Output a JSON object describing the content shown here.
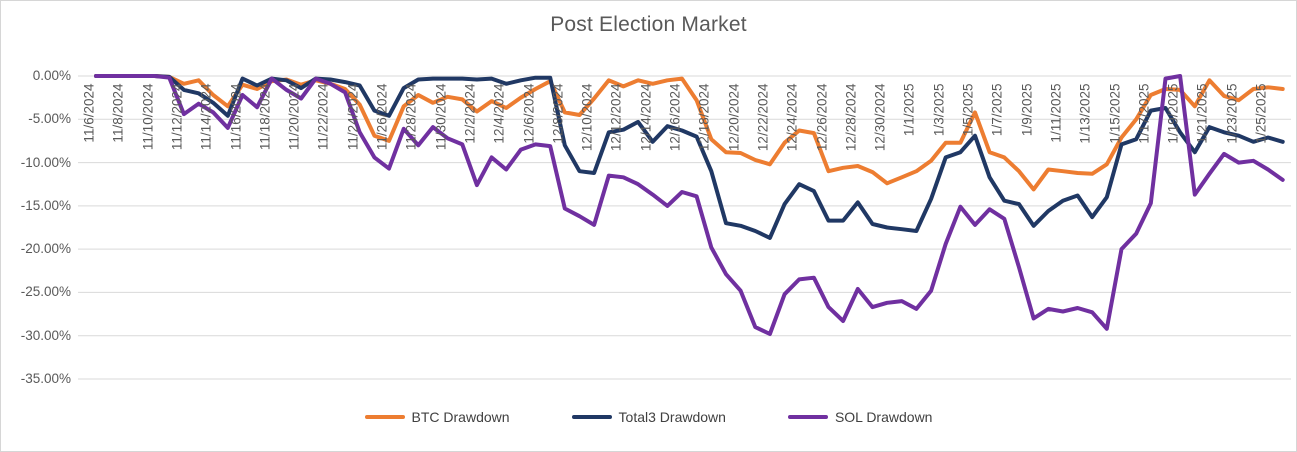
{
  "chart_title": "Post Election Market",
  "legend": {
    "items": [
      {
        "label": "BTC Drawdown",
        "color": "#ED7D31"
      },
      {
        "label": "Total3 Drawdown",
        "color": "#203864"
      },
      {
        "label": "SOL Drawdown",
        "color": "#7030A0"
      }
    ]
  },
  "colors": {
    "grid": "#d9d9d9",
    "axis_text": "#595959",
    "title_text": "#595959"
  },
  "chart_data": {
    "type": "line",
    "title": "Post Election Market",
    "xlabel": "",
    "ylabel": "",
    "ylim": [
      -35,
      0
    ],
    "grid": true,
    "legend_position": "bottom",
    "y_axis_tick_labels": [
      "0.00%",
      "-5.00%",
      "-10.00%",
      "-15.00%",
      "-20.00%",
      "-25.00%",
      "-30.00%",
      "-35.00%"
    ],
    "y_axis_tick_values": [
      0,
      -5,
      -10,
      -15,
      -20,
      -25,
      -30,
      -35
    ],
    "x_axis_tick_labels": [
      "11/6/2024",
      "11/8/2024",
      "11/10/2024",
      "11/12/2024",
      "11/14/2024",
      "11/16/2024",
      "11/18/2024",
      "11/20/2024",
      "11/22/2024",
      "11/24/2024",
      "11/26/2024",
      "11/28/2024",
      "11/30/2024",
      "12/2/2024",
      "12/4/2024",
      "12/6/2024",
      "12/8/2024",
      "12/10/2024",
      "12/12/2024",
      "12/14/2024",
      "12/16/2024",
      "12/18/2024",
      "12/20/2024",
      "12/22/2024",
      "12/24/2024",
      "12/26/2024",
      "12/28/2024",
      "12/30/2024",
      "1/1/2025",
      "1/3/2025",
      "1/5/2025",
      "1/7/2025",
      "1/9/2025",
      "1/11/2025",
      "1/13/2025",
      "1/15/2025",
      "1/17/2025",
      "1/19/2025",
      "1/21/2025",
      "1/23/2025",
      "1/25/2025"
    ],
    "x": [
      "11/6/2024",
      "11/7/2024",
      "11/8/2024",
      "11/9/2024",
      "11/10/2024",
      "11/11/2024",
      "11/12/2024",
      "11/13/2024",
      "11/14/2024",
      "11/15/2024",
      "11/16/2024",
      "11/17/2024",
      "11/18/2024",
      "11/19/2024",
      "11/20/2024",
      "11/21/2024",
      "11/22/2024",
      "11/23/2024",
      "11/24/2024",
      "11/25/2024",
      "11/26/2024",
      "11/27/2024",
      "11/28/2024",
      "11/29/2024",
      "11/30/2024",
      "12/1/2024",
      "12/2/2024",
      "12/3/2024",
      "12/4/2024",
      "12/5/2024",
      "12/6/2024",
      "12/7/2024",
      "12/8/2024",
      "12/9/2024",
      "12/10/2024",
      "12/11/2024",
      "12/12/2024",
      "12/13/2024",
      "12/14/2024",
      "12/15/2024",
      "12/16/2024",
      "12/17/2024",
      "12/18/2024",
      "12/19/2024",
      "12/20/2024",
      "12/21/2024",
      "12/22/2024",
      "12/23/2024",
      "12/24/2024",
      "12/25/2024",
      "12/26/2024",
      "12/27/2024",
      "12/28/2024",
      "12/29/2024",
      "12/30/2024",
      "12/31/2024",
      "1/1/2025",
      "1/2/2025",
      "1/3/2025",
      "1/4/2025",
      "1/5/2025",
      "1/6/2025",
      "1/7/2025",
      "1/8/2025",
      "1/9/2025",
      "1/10/2025",
      "1/11/2025",
      "1/12/2025",
      "1/13/2025",
      "1/14/2025",
      "1/15/2025",
      "1/16/2025",
      "1/17/2025",
      "1/18/2025",
      "1/19/2025",
      "1/20/2025",
      "1/21/2025",
      "1/22/2025",
      "1/23/2025",
      "1/24/2025",
      "1/25/2025",
      "1/26/2025"
    ],
    "series": [
      {
        "name": "BTC Drawdown",
        "color": "#ED7D31",
        "values": [
          0,
          0,
          0,
          0,
          0,
          -0.1,
          -0.9,
          -0.5,
          -2.2,
          -3.5,
          -1.0,
          -1.5,
          -0.6,
          -0.4,
          -1.0,
          -0.5,
          -0.9,
          -1.5,
          -3.3,
          -6.9,
          -7.5,
          -3.5,
          -2.2,
          -3.1,
          -2.4,
          -2.7,
          -4.1,
          -2.9,
          -3.7,
          -2.5,
          -1.5,
          -0.6,
          -4.2,
          -4.5,
          -2.6,
          -0.5,
          -1.2,
          -0.5,
          -0.9,
          -0.5,
          -0.3,
          -2.8,
          -7.3,
          -8.8,
          -8.9,
          -9.7,
          -10.2,
          -7.7,
          -6.3,
          -6.6,
          -11.0,
          -10.6,
          -10.4,
          -11.1,
          -12.4,
          -11.7,
          -11.0,
          -9.8,
          -7.7,
          -7.7,
          -4.2,
          -8.8,
          -9.4,
          -11.0,
          -13.1,
          -10.8,
          -11.0,
          -11.2,
          -11.3,
          -10.2,
          -7.1,
          -5.0,
          -2.2,
          -1.5,
          -1.6,
          -3.5,
          -0.5,
          -2.3,
          -2.8,
          -1.5,
          -1.3,
          -1.5
        ]
      },
      {
        "name": "Total3 Drawdown",
        "color": "#203864",
        "values": [
          0,
          0,
          0,
          0,
          0,
          -0.1,
          -1.6,
          -2.0,
          -3.1,
          -4.6,
          -0.3,
          -1.1,
          -0.3,
          -0.5,
          -1.4,
          -0.3,
          -0.4,
          -0.7,
          -1.1,
          -4.0,
          -4.6,
          -1.4,
          -0.4,
          -0.3,
          -0.3,
          -0.3,
          -0.4,
          -0.3,
          -0.9,
          -0.5,
          -0.2,
          -0.2,
          -8.0,
          -11.0,
          -11.2,
          -6.5,
          -6.2,
          -5.3,
          -7.6,
          -5.8,
          -6.3,
          -7.0,
          -11.0,
          -17.0,
          -17.3,
          -17.9,
          -18.7,
          -14.8,
          -12.5,
          -13.3,
          -16.7,
          -16.7,
          -14.6,
          -17.1,
          -17.5,
          -17.7,
          -17.9,
          -14.2,
          -9.4,
          -8.8,
          -6.9,
          -11.7,
          -14.4,
          -14.8,
          -17.3,
          -15.6,
          -14.4,
          -13.8,
          -16.3,
          -14.0,
          -7.9,
          -7.3,
          -4.0,
          -3.7,
          -6.5,
          -8.8,
          -5.9,
          -6.5,
          -6.9,
          -7.6,
          -7.1,
          -7.6
        ]
      },
      {
        "name": "SOL Drawdown",
        "color": "#7030A0",
        "values": [
          0,
          0,
          0,
          0,
          0,
          -0.2,
          -4.4,
          -3.2,
          -4.2,
          -6.0,
          -2.2,
          -3.6,
          -0.3,
          -1.6,
          -2.6,
          -0.3,
          -0.9,
          -1.9,
          -6.5,
          -9.4,
          -10.7,
          -6.1,
          -8.0,
          -5.9,
          -7.2,
          -7.9,
          -12.6,
          -9.4,
          -10.8,
          -8.5,
          -7.9,
          -8.1,
          -15.3,
          -16.2,
          -17.2,
          -11.5,
          -11.7,
          -12.5,
          -13.7,
          -15.0,
          -13.4,
          -13.9,
          -19.8,
          -22.9,
          -24.8,
          -29.0,
          -29.8,
          -25.2,
          -23.5,
          -23.3,
          -26.7,
          -28.3,
          -24.6,
          -26.7,
          -26.2,
          -26.0,
          -26.9,
          -24.8,
          -19.4,
          -15.1,
          -17.2,
          -15.4,
          -16.5,
          -22.1,
          -28.0,
          -26.9,
          -27.2,
          -26.8,
          -27.3,
          -29.2,
          -20.0,
          -18.2,
          -14.7,
          -0.3,
          0.0,
          -13.7,
          -11.3,
          -9.0,
          -10.0,
          -9.8,
          -10.8,
          -12.0
        ]
      }
    ]
  }
}
